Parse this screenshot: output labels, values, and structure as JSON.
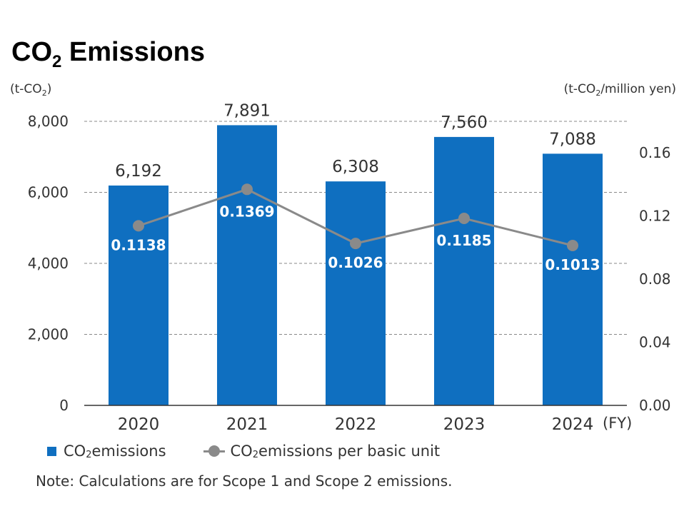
{
  "title": {
    "main": "CO",
    "sub": "2",
    "rest": " Emissions"
  },
  "units": {
    "left_a": "(t-CO",
    "left_sub": "2",
    "left_b": ")",
    "right_a": "(t-CO",
    "right_sub": "2",
    "right_b": "/million yen)"
  },
  "legend": {
    "bar_a": "CO",
    "bar_sub": "2",
    "bar_b": " emissions",
    "line_a": "CO",
    "line_sub": "2",
    "line_b": " emissions per basic unit"
  },
  "note": "Note: Calculations are for Scope 1 and Scope 2 emissions.",
  "colors": {
    "bar": "#0f6fc0",
    "line": "#8a8a8a",
    "marker": "#8a8a8a",
    "grid": "#888888",
    "axis": "#333333"
  },
  "chart_data": {
    "type": "bar",
    "categories": [
      "2020",
      "2021",
      "2022",
      "2023",
      "2024"
    ],
    "x_unit_label": "(FY)",
    "series": [
      {
        "values": [
          6192,
          7891,
          6308,
          7560,
          7088
        ],
        "labels": [
          "6,192",
          "7,891",
          "6,308",
          "7,560",
          "7,088"
        ],
        "axis": "left",
        "kind": "bar"
      },
      {
        "values": [
          0.1138,
          0.1369,
          0.1026,
          0.1185,
          0.1013
        ],
        "labels": [
          "0.1138",
          "0.1369",
          "0.1026",
          "0.1185",
          "0.1013"
        ],
        "axis": "right",
        "kind": "line"
      }
    ],
    "y_left": {
      "ylim": [
        0,
        8000
      ],
      "ticks": [
        0,
        2000,
        4000,
        6000,
        8000
      ],
      "tick_labels": [
        "0",
        "2,000",
        "4,000",
        "6,000",
        "8,000"
      ]
    },
    "y_right": {
      "ylim": [
        0,
        0.18
      ],
      "ticks": [
        0,
        0.04,
        0.08,
        0.12,
        0.16
      ],
      "tick_labels": [
        "0.00",
        "0.04",
        "0.08",
        "0.12",
        "0.16"
      ]
    },
    "grid": true,
    "legend_position": "bottom-left"
  }
}
